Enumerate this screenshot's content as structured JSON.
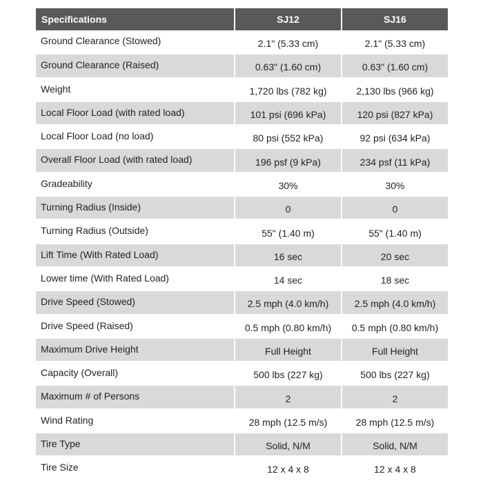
{
  "table": {
    "headers": [
      "Specifications",
      "SJ12",
      "SJ16"
    ],
    "rows": [
      [
        "Ground Clearance (Stowed)",
        "2.1\" (5.33 cm)",
        "2.1\" (5.33 cm)"
      ],
      [
        "Ground Clearance (Raised)",
        "0.63\" (1.60 cm)",
        "0.63\" (1.60 cm)"
      ],
      [
        "Weight",
        "1,720 lbs (782 kg)",
        "2,130 lbs (966 kg)"
      ],
      [
        "Local Floor Load (with rated load)",
        "101 psi (696 kPa)",
        "120 psi (827 kPa)"
      ],
      [
        "Local Floor Load (no load)",
        "80 psi (552 kPa)",
        "92 psi (634 kPa)"
      ],
      [
        "Overall Floor Load (with rated load)",
        "196 psf (9 kPa)",
        "234 psf (11 kPa)"
      ],
      [
        "Gradeability",
        "30%",
        "30%"
      ],
      [
        "Turning Radius (Inside)",
        "0",
        "0"
      ],
      [
        "Turning Radius (Outside)",
        "55\" (1.40 m)",
        "55\" (1.40 m)"
      ],
      [
        "Lift Time (With Rated Load)",
        "16 sec",
        "20 sec"
      ],
      [
        "Lower time (With Rated Load)",
        "14 sec",
        "18 sec"
      ],
      [
        "Drive Speed (Stowed)",
        "2.5 mph (4.0 km/h)",
        "2.5 mph (4.0 km/h)"
      ],
      [
        "Drive Speed (Raised)",
        "0.5 mph (0.80 km/h)",
        "0.5 mph (0.80 km/h)"
      ],
      [
        "Maximum Drive Height",
        "Full Height",
        "Full Height"
      ],
      [
        "Capacity (Overall)",
        "500 lbs (227 kg)",
        "500 lbs (227 kg)"
      ],
      [
        "Maximum # of Persons",
        "2",
        "2"
      ],
      [
        "Wind Rating",
        "28 mph (12.5 m/s)",
        "28 mph (12.5 m/s)"
      ],
      [
        "Tire Type",
        "Solid, N/M",
        "Solid, N/M"
      ],
      [
        "Tire Size",
        "12 x 4 x 8",
        "12 x 4 x 8"
      ]
    ]
  },
  "colors": {
    "header_bg": "#595959",
    "header_text": "#ffffff",
    "row_shade": "#d9d9d9",
    "row_plain": "#ffffff",
    "body_text": "#222222"
  }
}
